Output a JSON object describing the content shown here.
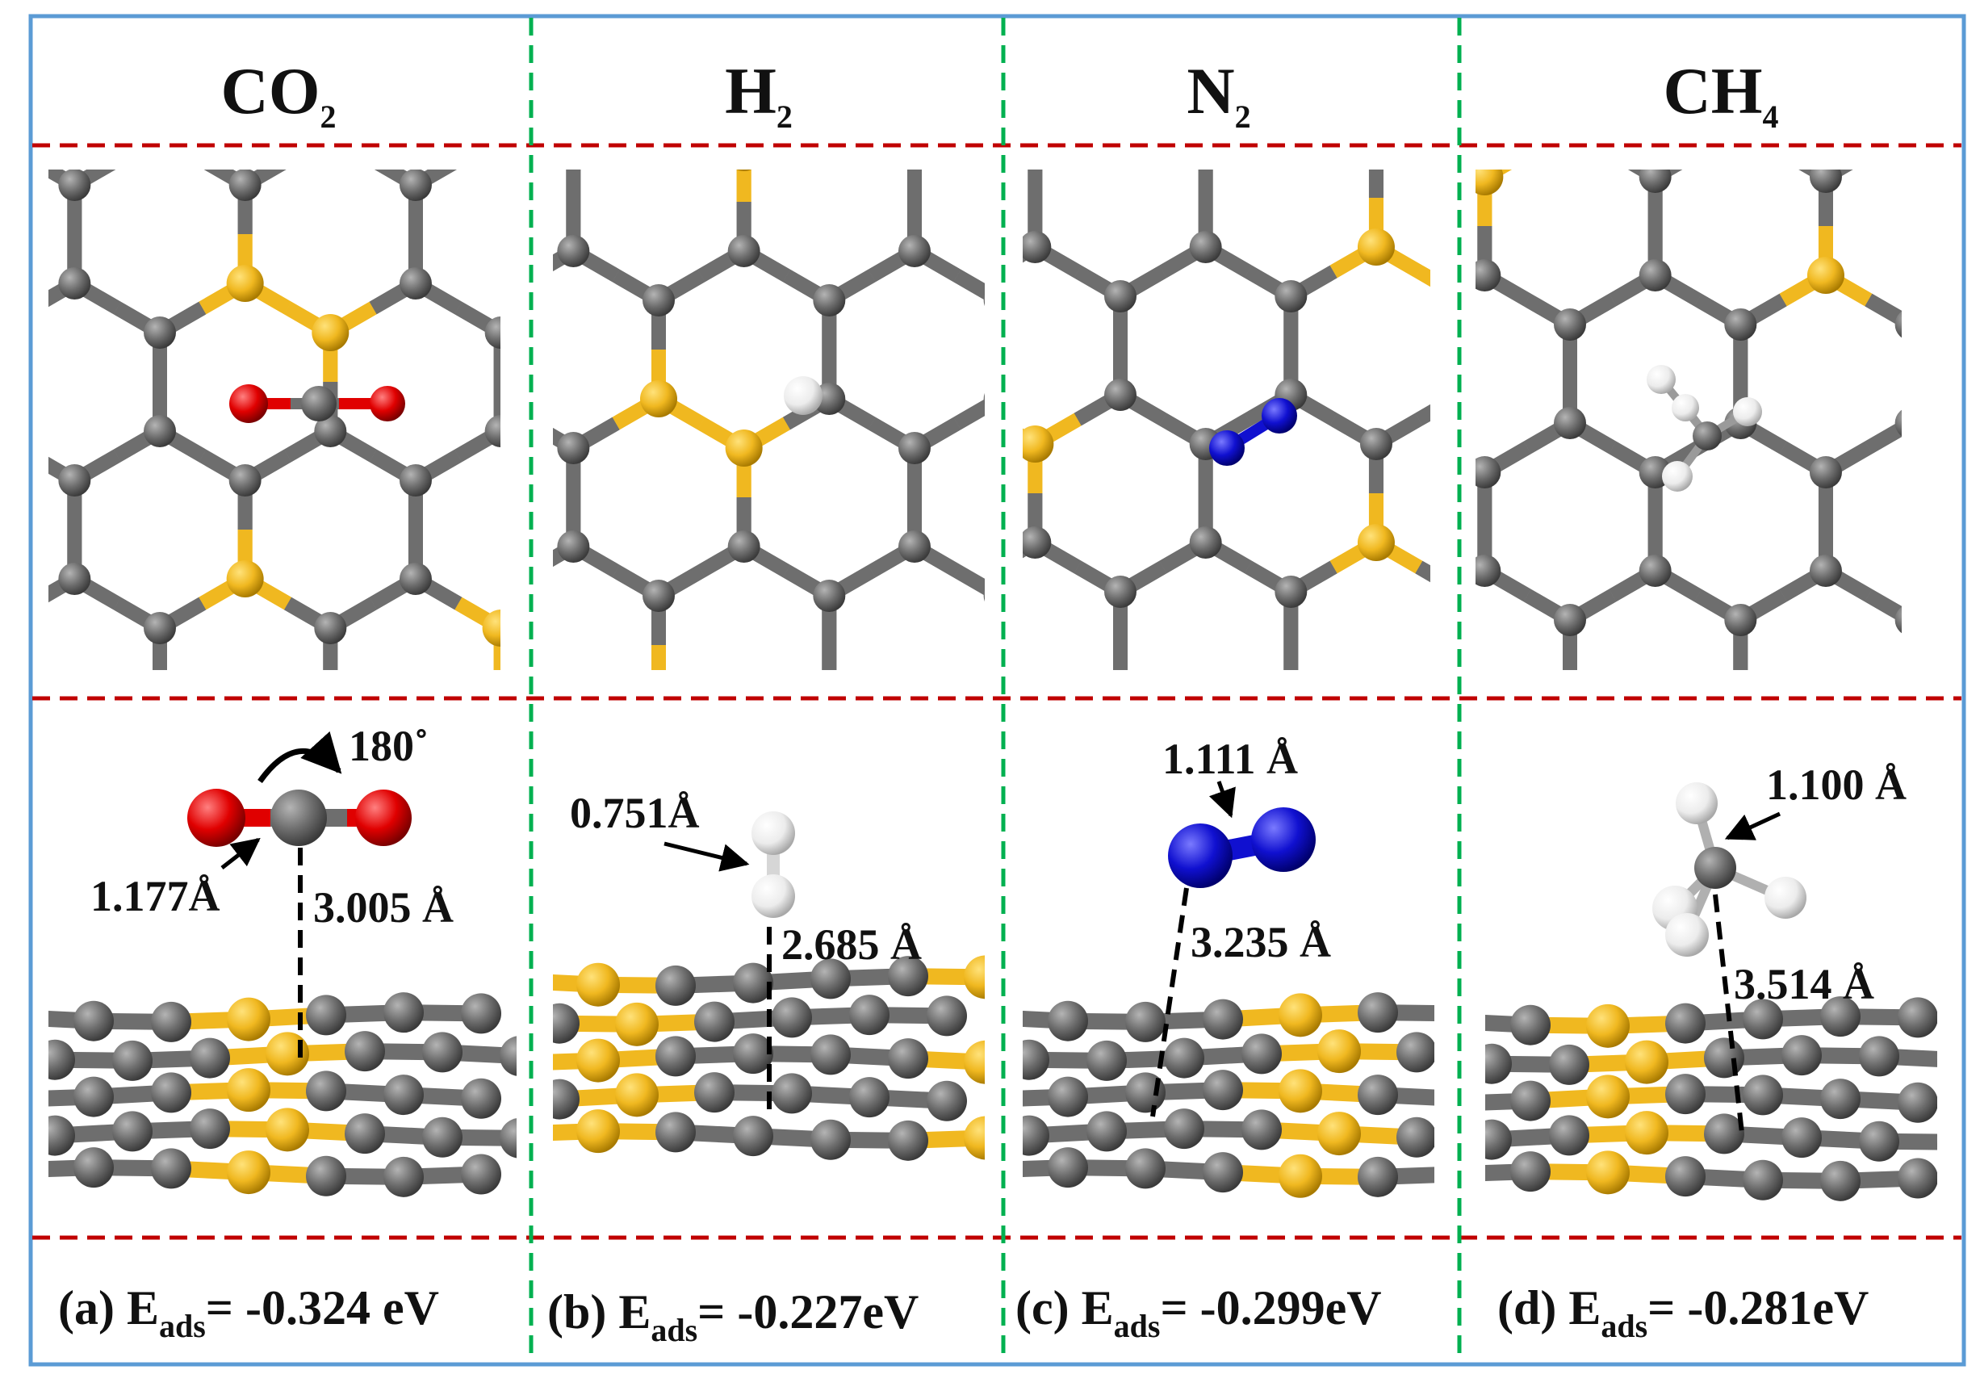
{
  "colors": {
    "frame": "#5b9bd5",
    "row_divider": "#c00000",
    "column_divider": "#00b050",
    "carbon": "#6e6e6e",
    "sulfur_dopant": "#f0b820",
    "oxygen": "#e00000",
    "hydrogen": "#f0f0f0",
    "nitrogen": "#1010d0"
  },
  "panels": [
    {
      "id": "a",
      "header": {
        "main": "CO",
        "sub": "2"
      },
      "molecule": "CO2",
      "measurements": {
        "rotation": "180˚",
        "bond_length": "1.177Å",
        "distance": "3.005 Å"
      },
      "caption": {
        "prefix": "(a) E",
        "sub": "ads",
        "value": "= -0.324 eV"
      }
    },
    {
      "id": "b",
      "header": {
        "main": "H",
        "sub": "2"
      },
      "molecule": "H2",
      "measurements": {
        "bond_length": "0.751Å",
        "distance": "2.685 Å"
      },
      "caption": {
        "prefix": "(b) E",
        "sub": "ads",
        "value": "= -0.227eV"
      }
    },
    {
      "id": "c",
      "header": {
        "main": "N",
        "sub": "2"
      },
      "molecule": "N2",
      "measurements": {
        "bond_length": "1.111 Å",
        "distance": "3.235 Å"
      },
      "caption": {
        "prefix": "(c) E",
        "sub": "ads",
        "value": "= -0.299eV"
      }
    },
    {
      "id": "d",
      "header": {
        "main": "CH",
        "sub": "4"
      },
      "molecule": "CH4",
      "measurements": {
        "bond_length": "1.100 Å",
        "distance": "3.514 Å"
      },
      "caption": {
        "prefix": "(d) E",
        "sub": "ads",
        "value": "= -0.281eV"
      }
    }
  ]
}
